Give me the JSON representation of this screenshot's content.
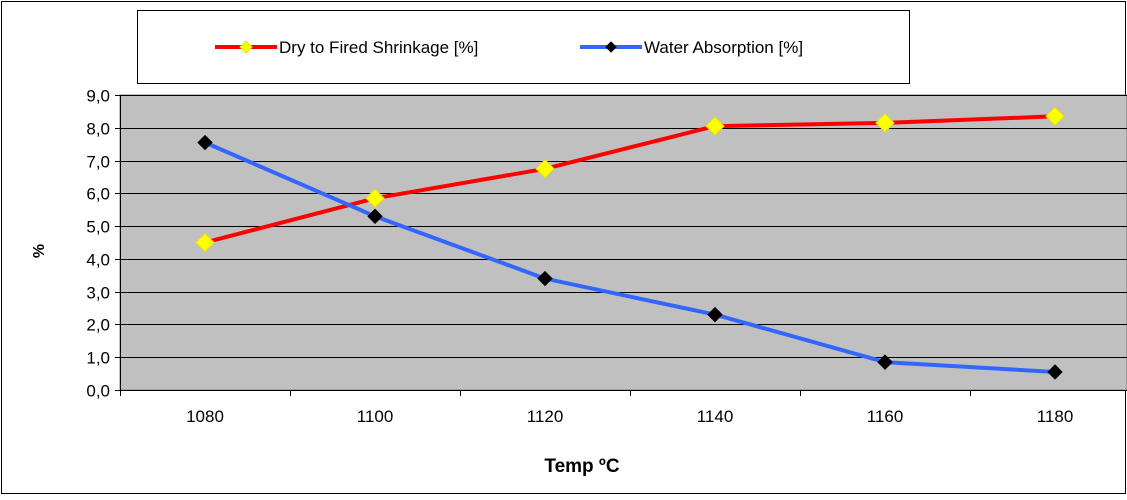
{
  "chart_data": {
    "type": "line",
    "title": "",
    "xlabel": "Temp ºC",
    "ylabel": "%",
    "categories": [
      "1080",
      "1100",
      "1120",
      "1140",
      "1160",
      "1180"
    ],
    "ylim": [
      0,
      9
    ],
    "y_ticks": [
      "0,0",
      "1,0",
      "2,0",
      "3,0",
      "4,0",
      "5,0",
      "6,0",
      "7,0",
      "8,0",
      "9,0"
    ],
    "grid": true,
    "plot_background": "#c0c0c0",
    "legend_position": "top",
    "series": [
      {
        "name": "Dry to Fired Shrinkage [%]",
        "values": [
          4.5,
          5.85,
          6.75,
          8.05,
          8.15,
          8.35
        ],
        "line_color": "#ff0000",
        "marker_color": "#ffff00",
        "marker": "diamond"
      },
      {
        "name": "Water Absorption [%]",
        "values": [
          7.55,
          5.3,
          3.4,
          2.3,
          0.85,
          0.55
        ],
        "line_color": "#3366ff",
        "marker_color": "#000000",
        "marker": "diamond"
      }
    ]
  }
}
